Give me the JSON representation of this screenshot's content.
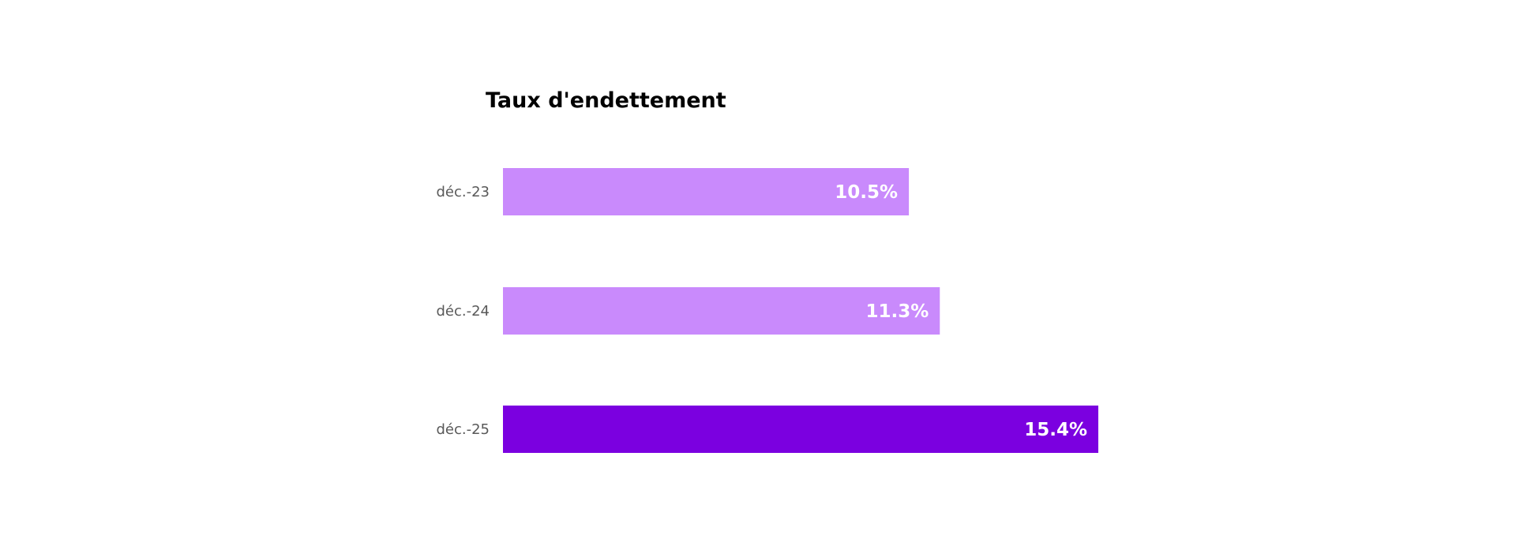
{
  "chart_data": {
    "type": "bar",
    "orientation": "horizontal",
    "title": "Taux d'endettement",
    "categories": [
      "déc.-23",
      "déc.-24",
      "déc.-25"
    ],
    "values": [
      10.5,
      11.3,
      15.4
    ],
    "data_labels": [
      "10.5%",
      "11.3%",
      "15.4%"
    ],
    "unit": "%",
    "xlim": [
      0,
      15.4
    ],
    "grid": false,
    "colors": [
      "#C98AFC",
      "#C98AFC",
      "#7B00E0"
    ]
  }
}
